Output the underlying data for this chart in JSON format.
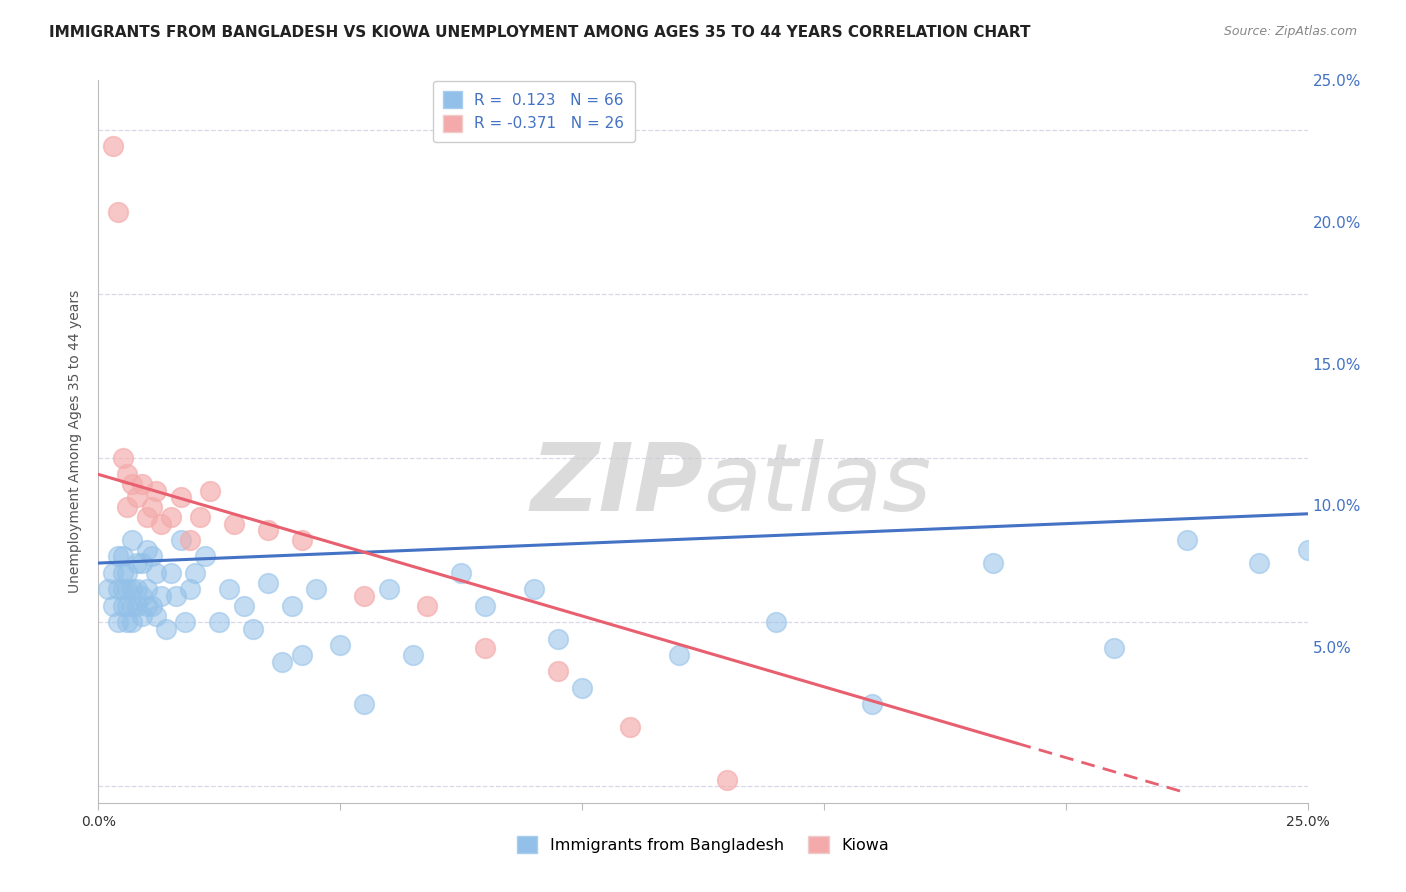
{
  "title": "IMMIGRANTS FROM BANGLADESH VS KIOWA UNEMPLOYMENT AMONG AGES 35 TO 44 YEARS CORRELATION CHART",
  "source": "Source: ZipAtlas.com",
  "ylabel": "Unemployment Among Ages 35 to 44 years",
  "xlim": [
    0.0,
    0.25
  ],
  "ylim": [
    -0.005,
    0.215
  ],
  "x_ticks": [
    0.0,
    0.05,
    0.1,
    0.15,
    0.2,
    0.25
  ],
  "x_tick_labels": [
    "0.0%",
    "",
    "",
    "",
    "",
    "25.0%"
  ],
  "y_ticks": [
    0.0,
    0.05,
    0.1,
    0.15,
    0.2
  ],
  "y_tick_labels": [
    "",
    "",
    "",
    "",
    ""
  ],
  "right_y_ticks": [
    0.05,
    0.1,
    0.15,
    0.2,
    0.25
  ],
  "right_y_tick_labels": [
    "5.0%",
    "10.0%",
    "15.0%",
    "20.0%",
    "25.0%"
  ],
  "legend_entries": [
    {
      "label": "R =  0.123   N = 66",
      "color": "#92C0E8"
    },
    {
      "label": "R = -0.371   N = 26",
      "color": "#F4AAAA"
    }
  ],
  "watermark_zip": "ZIP",
  "watermark_atlas": "atlas",
  "blue_scatter_x": [
    0.002,
    0.003,
    0.003,
    0.004,
    0.004,
    0.004,
    0.005,
    0.005,
    0.005,
    0.005,
    0.006,
    0.006,
    0.006,
    0.006,
    0.007,
    0.007,
    0.007,
    0.007,
    0.008,
    0.008,
    0.008,
    0.009,
    0.009,
    0.009,
    0.01,
    0.01,
    0.01,
    0.011,
    0.011,
    0.012,
    0.012,
    0.013,
    0.014,
    0.015,
    0.016,
    0.017,
    0.018,
    0.019,
    0.02,
    0.022,
    0.025,
    0.027,
    0.03,
    0.032,
    0.035,
    0.038,
    0.04,
    0.042,
    0.045,
    0.05,
    0.055,
    0.06,
    0.065,
    0.075,
    0.08,
    0.09,
    0.095,
    0.1,
    0.12,
    0.14,
    0.16,
    0.185,
    0.21,
    0.225,
    0.24,
    0.25
  ],
  "blue_scatter_y": [
    0.06,
    0.055,
    0.065,
    0.05,
    0.06,
    0.07,
    0.055,
    0.06,
    0.065,
    0.07,
    0.05,
    0.055,
    0.06,
    0.065,
    0.05,
    0.055,
    0.06,
    0.075,
    0.055,
    0.06,
    0.068,
    0.052,
    0.058,
    0.068,
    0.055,
    0.06,
    0.072,
    0.055,
    0.07,
    0.052,
    0.065,
    0.058,
    0.048,
    0.065,
    0.058,
    0.075,
    0.05,
    0.06,
    0.065,
    0.07,
    0.05,
    0.06,
    0.055,
    0.048,
    0.062,
    0.038,
    0.055,
    0.04,
    0.06,
    0.043,
    0.025,
    0.06,
    0.04,
    0.065,
    0.055,
    0.06,
    0.045,
    0.03,
    0.04,
    0.05,
    0.025,
    0.068,
    0.042,
    0.075,
    0.068,
    0.072
  ],
  "pink_scatter_x": [
    0.003,
    0.004,
    0.005,
    0.006,
    0.006,
    0.007,
    0.008,
    0.009,
    0.01,
    0.011,
    0.012,
    0.013,
    0.015,
    0.017,
    0.019,
    0.021,
    0.023,
    0.028,
    0.035,
    0.042,
    0.055,
    0.068,
    0.08,
    0.095,
    0.11,
    0.13
  ],
  "pink_scatter_y": [
    0.195,
    0.175,
    0.1,
    0.085,
    0.095,
    0.092,
    0.088,
    0.092,
    0.082,
    0.085,
    0.09,
    0.08,
    0.082,
    0.088,
    0.075,
    0.082,
    0.09,
    0.08,
    0.078,
    0.075,
    0.058,
    0.055,
    0.042,
    0.035,
    0.018,
    0.002
  ],
  "blue_line_x": [
    0.0,
    0.25
  ],
  "blue_line_y": [
    0.068,
    0.083
  ],
  "pink_line_x": [
    0.0,
    0.225
  ],
  "pink_line_y": [
    0.095,
    -0.002
  ],
  "blue_line_color": "#4472C4",
  "pink_line_color": "#E86070",
  "blue_scatter_color": "#92C0E8",
  "pink_scatter_color": "#F4AAAA",
  "background_color": "#FFFFFF",
  "grid_color": "#D8D8E8",
  "title_fontsize": 11,
  "axis_fontsize": 10,
  "tick_fontsize": 10,
  "right_tick_color": "#4472C4"
}
